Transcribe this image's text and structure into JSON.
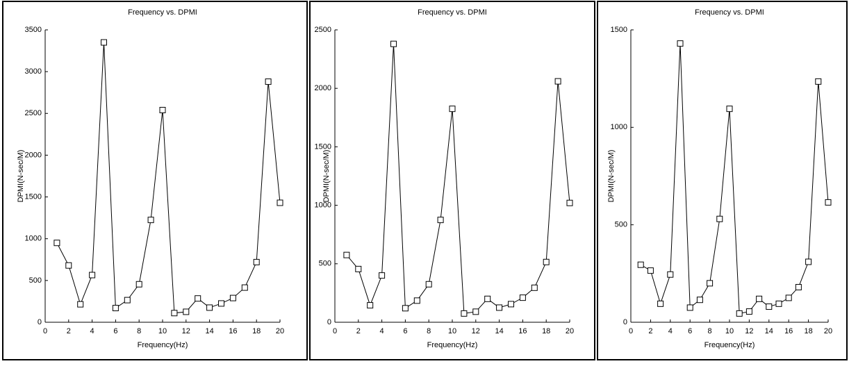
{
  "chart_data": [
    {
      "type": "line",
      "title": "Frequency vs. DPMI",
      "x_label": "Frequency(Hz)",
      "y_label": "DPMI(N-sec/M)",
      "x": [
        1,
        2,
        3,
        4,
        5,
        6,
        7,
        8,
        9,
        10,
        11,
        12,
        13,
        14,
        15,
        16,
        17,
        18,
        19,
        20
      ],
      "series": [
        {
          "color": "#000000",
          "values": [
            950,
            680,
            215,
            565,
            3350,
            170,
            265,
            455,
            1225,
            2540,
            110,
            125,
            285,
            175,
            225,
            290,
            415,
            720,
            2880,
            1430
          ]
        }
      ],
      "xlim": [
        0,
        20
      ],
      "xticks": [
        0,
        2,
        4,
        6,
        8,
        10,
        12,
        14,
        16,
        18,
        20
      ],
      "ylim": [
        0,
        3500
      ],
      "yticks": [
        0,
        500,
        1000,
        1500,
        2000,
        2500,
        3000,
        3500
      ]
    },
    {
      "type": "line",
      "title": "Frequency vs. DPMI",
      "x_label": "Frequency(Hz)",
      "y_label": "DPMI(N-sec/M)",
      "x": [
        1,
        2,
        3,
        4,
        5,
        6,
        7,
        8,
        9,
        10,
        11,
        12,
        13,
        14,
        15,
        16,
        17,
        18,
        19,
        20
      ],
      "series": [
        {
          "color": "#000000",
          "values": [
            575,
            455,
            145,
            400,
            2380,
            120,
            185,
            325,
            875,
            1825,
            75,
            90,
            200,
            125,
            155,
            210,
            295,
            515,
            2060,
            1020
          ]
        }
      ],
      "xlim": [
        0,
        20
      ],
      "xticks": [
        0,
        2,
        4,
        6,
        8,
        10,
        12,
        14,
        16,
        18,
        20
      ],
      "ylim": [
        0,
        2500
      ],
      "yticks": [
        0,
        500,
        1000,
        1500,
        2000,
        2500
      ]
    },
    {
      "type": "line",
      "title": "Frequency vs. DPMI",
      "x_label": "Frequency(Hz)",
      "y_label": "DPMI(N-sec/M)",
      "x": [
        1,
        2,
        3,
        4,
        5,
        6,
        7,
        8,
        9,
        10,
        11,
        12,
        13,
        14,
        15,
        16,
        17,
        18,
        19,
        20
      ],
      "series": [
        {
          "color": "#000000",
          "values": [
            295,
            265,
            95,
            245,
            1430,
            75,
            115,
            200,
            530,
            1095,
            45,
            55,
            120,
            80,
            95,
            125,
            180,
            310,
            1235,
            615
          ]
        }
      ],
      "xlim": [
        0,
        20
      ],
      "xticks": [
        0,
        2,
        4,
        6,
        8,
        10,
        12,
        14,
        16,
        18,
        20
      ],
      "ylim": [
        0,
        1500
      ],
      "yticks": [
        0,
        500,
        1000,
        1500
      ]
    }
  ]
}
